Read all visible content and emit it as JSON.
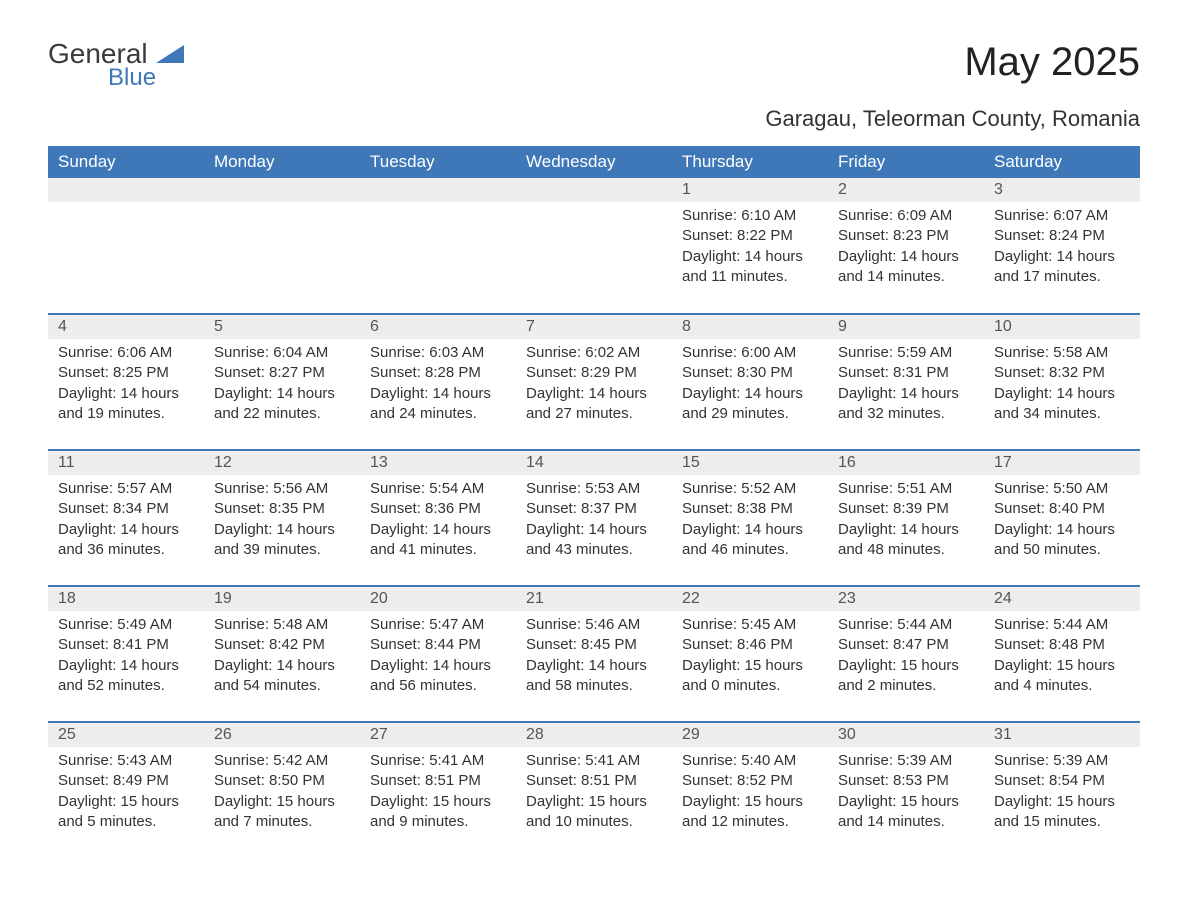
{
  "logo": {
    "main": "General",
    "sub": "Blue",
    "accent_color": "#3e78b9",
    "text_color": "#3a3a3a"
  },
  "title": "May 2025",
  "subtitle": "Garagau, Teleorman County, Romania",
  "colors": {
    "header_bg": "#3e78b9",
    "header_fg": "#ffffff",
    "daynum_bg": "#ededed",
    "daynum_fg": "#555555",
    "body_fg": "#333333",
    "rule": "#3e78b9",
    "background": "#ffffff"
  },
  "day_headers": [
    "Sunday",
    "Monday",
    "Tuesday",
    "Wednesday",
    "Thursday",
    "Friday",
    "Saturday"
  ],
  "weeks": [
    [
      null,
      null,
      null,
      null,
      {
        "n": "1",
        "sunrise": "Sunrise: 6:10 AM",
        "sunset": "Sunset: 8:22 PM",
        "day": "Daylight: 14 hours and 11 minutes."
      },
      {
        "n": "2",
        "sunrise": "Sunrise: 6:09 AM",
        "sunset": "Sunset: 8:23 PM",
        "day": "Daylight: 14 hours and 14 minutes."
      },
      {
        "n": "3",
        "sunrise": "Sunrise: 6:07 AM",
        "sunset": "Sunset: 8:24 PM",
        "day": "Daylight: 14 hours and 17 minutes."
      }
    ],
    [
      {
        "n": "4",
        "sunrise": "Sunrise: 6:06 AM",
        "sunset": "Sunset: 8:25 PM",
        "day": "Daylight: 14 hours and 19 minutes."
      },
      {
        "n": "5",
        "sunrise": "Sunrise: 6:04 AM",
        "sunset": "Sunset: 8:27 PM",
        "day": "Daylight: 14 hours and 22 minutes."
      },
      {
        "n": "6",
        "sunrise": "Sunrise: 6:03 AM",
        "sunset": "Sunset: 8:28 PM",
        "day": "Daylight: 14 hours and 24 minutes."
      },
      {
        "n": "7",
        "sunrise": "Sunrise: 6:02 AM",
        "sunset": "Sunset: 8:29 PM",
        "day": "Daylight: 14 hours and 27 minutes."
      },
      {
        "n": "8",
        "sunrise": "Sunrise: 6:00 AM",
        "sunset": "Sunset: 8:30 PM",
        "day": "Daylight: 14 hours and 29 minutes."
      },
      {
        "n": "9",
        "sunrise": "Sunrise: 5:59 AM",
        "sunset": "Sunset: 8:31 PM",
        "day": "Daylight: 14 hours and 32 minutes."
      },
      {
        "n": "10",
        "sunrise": "Sunrise: 5:58 AM",
        "sunset": "Sunset: 8:32 PM",
        "day": "Daylight: 14 hours and 34 minutes."
      }
    ],
    [
      {
        "n": "11",
        "sunrise": "Sunrise: 5:57 AM",
        "sunset": "Sunset: 8:34 PM",
        "day": "Daylight: 14 hours and 36 minutes."
      },
      {
        "n": "12",
        "sunrise": "Sunrise: 5:56 AM",
        "sunset": "Sunset: 8:35 PM",
        "day": "Daylight: 14 hours and 39 minutes."
      },
      {
        "n": "13",
        "sunrise": "Sunrise: 5:54 AM",
        "sunset": "Sunset: 8:36 PM",
        "day": "Daylight: 14 hours and 41 minutes."
      },
      {
        "n": "14",
        "sunrise": "Sunrise: 5:53 AM",
        "sunset": "Sunset: 8:37 PM",
        "day": "Daylight: 14 hours and 43 minutes."
      },
      {
        "n": "15",
        "sunrise": "Sunrise: 5:52 AM",
        "sunset": "Sunset: 8:38 PM",
        "day": "Daylight: 14 hours and 46 minutes."
      },
      {
        "n": "16",
        "sunrise": "Sunrise: 5:51 AM",
        "sunset": "Sunset: 8:39 PM",
        "day": "Daylight: 14 hours and 48 minutes."
      },
      {
        "n": "17",
        "sunrise": "Sunrise: 5:50 AM",
        "sunset": "Sunset: 8:40 PM",
        "day": "Daylight: 14 hours and 50 minutes."
      }
    ],
    [
      {
        "n": "18",
        "sunrise": "Sunrise: 5:49 AM",
        "sunset": "Sunset: 8:41 PM",
        "day": "Daylight: 14 hours and 52 minutes."
      },
      {
        "n": "19",
        "sunrise": "Sunrise: 5:48 AM",
        "sunset": "Sunset: 8:42 PM",
        "day": "Daylight: 14 hours and 54 minutes."
      },
      {
        "n": "20",
        "sunrise": "Sunrise: 5:47 AM",
        "sunset": "Sunset: 8:44 PM",
        "day": "Daylight: 14 hours and 56 minutes."
      },
      {
        "n": "21",
        "sunrise": "Sunrise: 5:46 AM",
        "sunset": "Sunset: 8:45 PM",
        "day": "Daylight: 14 hours and 58 minutes."
      },
      {
        "n": "22",
        "sunrise": "Sunrise: 5:45 AM",
        "sunset": "Sunset: 8:46 PM",
        "day": "Daylight: 15 hours and 0 minutes."
      },
      {
        "n": "23",
        "sunrise": "Sunrise: 5:44 AM",
        "sunset": "Sunset: 8:47 PM",
        "day": "Daylight: 15 hours and 2 minutes."
      },
      {
        "n": "24",
        "sunrise": "Sunrise: 5:44 AM",
        "sunset": "Sunset: 8:48 PM",
        "day": "Daylight: 15 hours and 4 minutes."
      }
    ],
    [
      {
        "n": "25",
        "sunrise": "Sunrise: 5:43 AM",
        "sunset": "Sunset: 8:49 PM",
        "day": "Daylight: 15 hours and 5 minutes."
      },
      {
        "n": "26",
        "sunrise": "Sunrise: 5:42 AM",
        "sunset": "Sunset: 8:50 PM",
        "day": "Daylight: 15 hours and 7 minutes."
      },
      {
        "n": "27",
        "sunrise": "Sunrise: 5:41 AM",
        "sunset": "Sunset: 8:51 PM",
        "day": "Daylight: 15 hours and 9 minutes."
      },
      {
        "n": "28",
        "sunrise": "Sunrise: 5:41 AM",
        "sunset": "Sunset: 8:51 PM",
        "day": "Daylight: 15 hours and 10 minutes."
      },
      {
        "n": "29",
        "sunrise": "Sunrise: 5:40 AM",
        "sunset": "Sunset: 8:52 PM",
        "day": "Daylight: 15 hours and 12 minutes."
      },
      {
        "n": "30",
        "sunrise": "Sunrise: 5:39 AM",
        "sunset": "Sunset: 8:53 PM",
        "day": "Daylight: 15 hours and 14 minutes."
      },
      {
        "n": "31",
        "sunrise": "Sunrise: 5:39 AM",
        "sunset": "Sunset: 8:54 PM",
        "day": "Daylight: 15 hours and 15 minutes."
      }
    ]
  ]
}
